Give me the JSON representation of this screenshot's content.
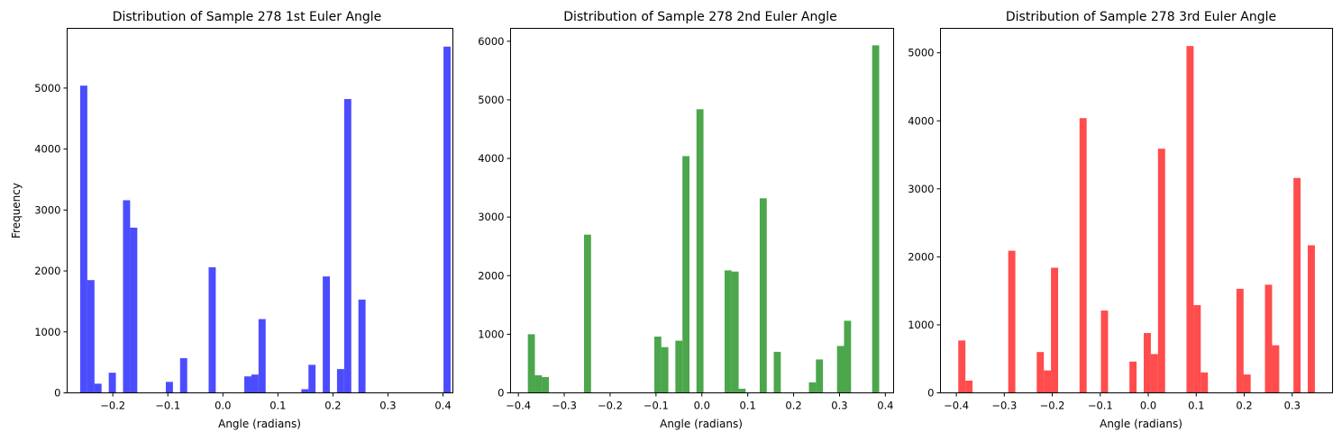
{
  "chart_data": [
    {
      "type": "bar",
      "title": "Distribution of Sample 278 1st Euler Angle",
      "xlabel": "Angle (radians)",
      "ylabel": "Frequency",
      "color": "#0000ff",
      "xlim": [
        -0.283,
        0.418
      ],
      "ylim": [
        0,
        5980
      ],
      "xticks": [
        -0.2,
        -0.1,
        0.0,
        0.1,
        0.2,
        0.3,
        0.4
      ],
      "xtick_labels": [
        "−0.2",
        "−0.1",
        "0.0",
        "0.1",
        "0.2",
        "0.3",
        "0.4"
      ],
      "yticks": [
        0,
        1000,
        2000,
        3000,
        4000,
        5000
      ],
      "ytick_labels": [
        "0",
        "1000",
        "2000",
        "3000",
        "4000",
        "5000"
      ],
      "bin_width": 0.01296,
      "bins": [
        {
          "x": -0.2528,
          "value": 5040
        },
        {
          "x": -0.2398,
          "value": 1850
        },
        {
          "x": -0.2269,
          "value": 150
        },
        {
          "x": -0.2009,
          "value": 330
        },
        {
          "x": -0.175,
          "value": 3160
        },
        {
          "x": -0.162,
          "value": 2710
        },
        {
          "x": -0.0972,
          "value": 180
        },
        {
          "x": -0.0713,
          "value": 570
        },
        {
          "x": -0.0194,
          "value": 2060
        },
        {
          "x": 0.0454,
          "value": 270
        },
        {
          "x": 0.0583,
          "value": 300
        },
        {
          "x": 0.0713,
          "value": 1210
        },
        {
          "x": 0.1491,
          "value": 60
        },
        {
          "x": 0.162,
          "value": 460
        },
        {
          "x": 0.188,
          "value": 1910
        },
        {
          "x": 0.2139,
          "value": 390
        },
        {
          "x": 0.2269,
          "value": 4820
        },
        {
          "x": 0.2528,
          "value": 1530
        },
        {
          "x": 0.4074,
          "value": 5680
        }
      ]
    },
    {
      "type": "bar",
      "title": "Distribution of Sample 278 2nd Euler Angle",
      "xlabel": "Angle (radians)",
      "ylabel": "",
      "color": "#008000",
      "xlim": [
        -0.417,
        0.418
      ],
      "ylim": [
        0,
        6220
      ],
      "xticks": [
        -0.4,
        -0.3,
        -0.2,
        -0.1,
        0.0,
        0.1,
        0.2,
        0.3,
        0.4
      ],
      "xtick_labels": [
        "−0.4",
        "−0.3",
        "−0.2",
        "−0.1",
        "0.0",
        "0.1",
        "0.2",
        "0.3",
        "0.4"
      ],
      "yticks": [
        0,
        1000,
        2000,
        3000,
        4000,
        5000,
        6000
      ],
      "ytick_labels": [
        "0",
        "1000",
        "2000",
        "3000",
        "4000",
        "5000",
        "6000"
      ],
      "bin_width": 0.01532,
      "bins": [
        {
          "x": -0.3717,
          "value": 1000
        },
        {
          "x": -0.3564,
          "value": 300
        },
        {
          "x": -0.3411,
          "value": 270
        },
        {
          "x": -0.2492,
          "value": 2700
        },
        {
          "x": -0.096,
          "value": 960
        },
        {
          "x": -0.0807,
          "value": 780
        },
        {
          "x": -0.0501,
          "value": 890
        },
        {
          "x": -0.0347,
          "value": 4040
        },
        {
          "x": -0.0041,
          "value": 4840
        },
        {
          "x": 0.0572,
          "value": 2090
        },
        {
          "x": 0.0725,
          "value": 2070
        },
        {
          "x": 0.0878,
          "value": 70
        },
        {
          "x": 0.1338,
          "value": 3320
        },
        {
          "x": 0.1644,
          "value": 700
        },
        {
          "x": 0.241,
          "value": 180
        },
        {
          "x": 0.2563,
          "value": 570
        },
        {
          "x": 0.3023,
          "value": 800
        },
        {
          "x": 0.3176,
          "value": 1230
        },
        {
          "x": 0.3789,
          "value": 5930
        }
      ]
    },
    {
      "type": "bar",
      "title": "Distribution of Sample 278 3rd Euler Angle",
      "xlabel": "Angle (radians)",
      "ylabel": "",
      "color": "#ff0000",
      "xlim": [
        -0.433,
        0.384
      ],
      "ylim": [
        0,
        5360
      ],
      "xticks": [
        -0.4,
        -0.3,
        -0.2,
        -0.1,
        0.0,
        0.1,
        0.2,
        0.3
      ],
      "xtick_labels": [
        "−0.4",
        "−0.3",
        "−0.2",
        "−0.1",
        "0.0",
        "0.1",
        "0.2",
        "0.3"
      ],
      "yticks": [
        0,
        1000,
        2000,
        3000,
        4000,
        5000
      ],
      "ytick_labels": [
        "0",
        "1000",
        "2000",
        "3000",
        "4000",
        "5000"
      ],
      "bin_width": 0.01486,
      "bins": [
        {
          "x": -0.3885,
          "value": 770
        },
        {
          "x": -0.3736,
          "value": 180
        },
        {
          "x": -0.2844,
          "value": 2090
        },
        {
          "x": -0.225,
          "value": 600
        },
        {
          "x": -0.2101,
          "value": 330
        },
        {
          "x": -0.1953,
          "value": 1840
        },
        {
          "x": -0.1358,
          "value": 4040
        },
        {
          "x": -0.0912,
          "value": 1210
        },
        {
          "x": -0.0318,
          "value": 460
        },
        {
          "x": -0.002,
          "value": 880
        },
        {
          "x": 0.0128,
          "value": 570
        },
        {
          "x": 0.0277,
          "value": 3590
        },
        {
          "x": 0.0871,
          "value": 5100
        },
        {
          "x": 0.102,
          "value": 1290
        },
        {
          "x": 0.1169,
          "value": 300
        },
        {
          "x": 0.1912,
          "value": 1530
        },
        {
          "x": 0.206,
          "value": 270
        },
        {
          "x": 0.2506,
          "value": 1590
        },
        {
          "x": 0.2655,
          "value": 700
        },
        {
          "x": 0.31,
          "value": 3160
        },
        {
          "x": 0.3398,
          "value": 2170
        }
      ]
    }
  ]
}
